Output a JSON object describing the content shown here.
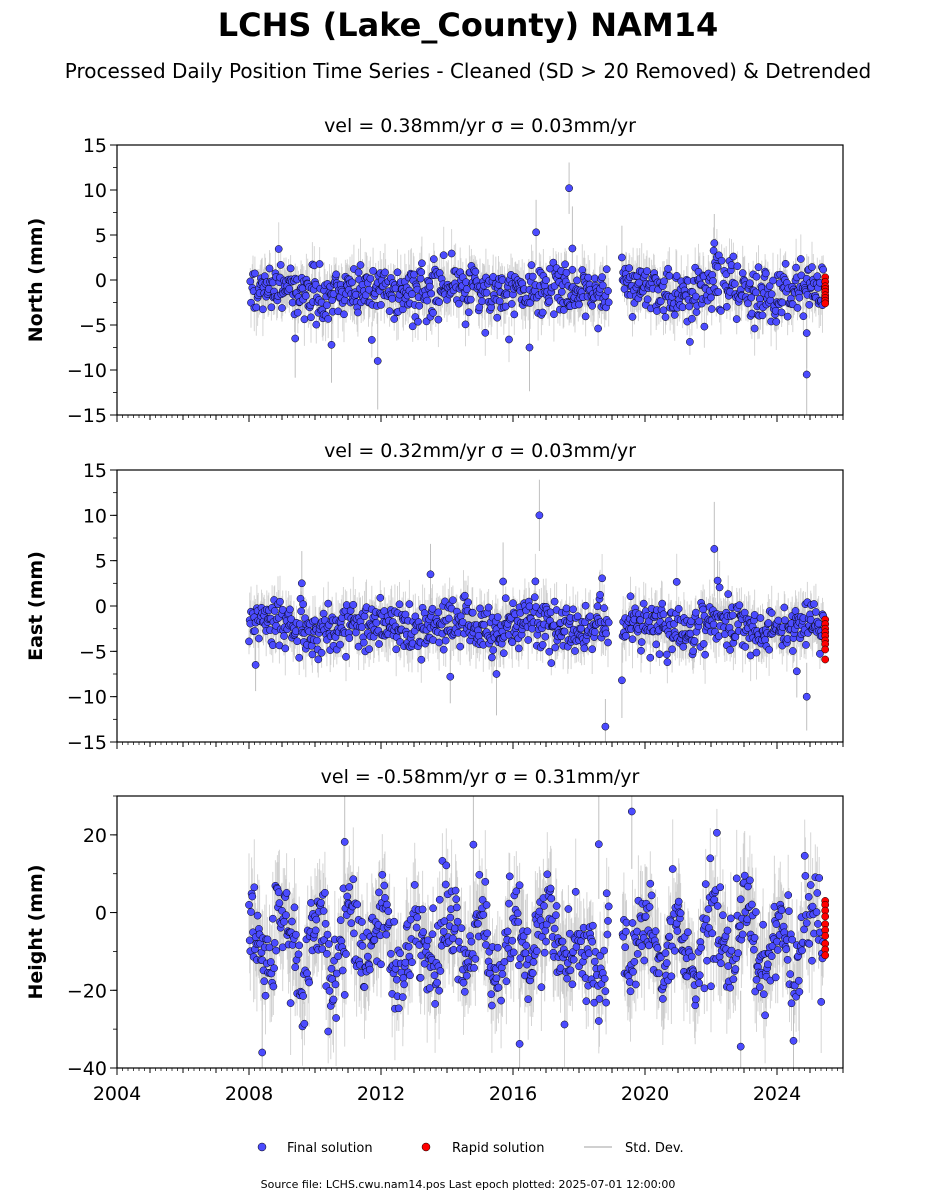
{
  "chart_data": {
    "type": "scatter",
    "title": "LCHS (Lake_County) NAM14",
    "subtitle": "Processed Daily Position Time Series - Cleaned (SD > 20 Removed) & Detrended",
    "x_range": [
      2004,
      2026
    ],
    "x_ticks": [
      "2004",
      "2008",
      "2012",
      "2016",
      "2020",
      "2024"
    ],
    "data_span": [
      2008.0,
      2025.4
    ],
    "panels": [
      {
        "title": "vel = 0.38mm/yr   σ = 0.03mm/yr",
        "ylabel": "North (mm)",
        "ylim": [
          -15,
          15
        ],
        "yticks": [
          "15",
          "10",
          "5",
          "0",
          "−5",
          "−10",
          "−15"
        ],
        "center": -1.2,
        "scatter": 1.4,
        "rapid_values": [
          0.3,
          -0.2,
          -0.7,
          -1.0,
          -1.3,
          -1.7,
          -2.0,
          -2.3,
          -2.6
        ],
        "outliers": [
          [
            2017.7,
            10.2
          ],
          [
            2016.7,
            5.3
          ],
          [
            2022.1,
            4.1
          ],
          [
            2017.8,
            3.5
          ],
          [
            2011.9,
            -9.0
          ],
          [
            2016.5,
            -7.5
          ],
          [
            2010.5,
            -7.2
          ],
          [
            2009.4,
            -6.5
          ],
          [
            2024.9,
            -10.5
          ],
          [
            2024.9,
            -5.9
          ],
          [
            2019.3,
            2.5
          ]
        ],
        "gaps": [
          [
            2018.9,
            2019.3
          ]
        ]
      },
      {
        "title": "vel = 0.32mm/yr   σ = 0.03mm/yr",
        "ylabel": "East (mm)",
        "ylim": [
          -15,
          15
        ],
        "yticks": [
          "15",
          "10",
          "5",
          "0",
          "−5",
          "−10",
          "−15"
        ],
        "center": -2.2,
        "scatter": 1.4,
        "rapid_values": [
          -1.5,
          -2.0,
          -2.5,
          -2.9,
          -3.3,
          -3.8,
          -4.2,
          -4.8,
          -5.9
        ],
        "outliers": [
          [
            2016.8,
            10.0
          ],
          [
            2022.1,
            6.3
          ],
          [
            2013.5,
            3.5
          ],
          [
            2022.2,
            2.8
          ],
          [
            2015.7,
            2.7
          ],
          [
            2009.6,
            2.5
          ],
          [
            2018.8,
            -13.3
          ],
          [
            2019.3,
            -8.2
          ],
          [
            2014.1,
            -7.8
          ],
          [
            2015.5,
            -7.5
          ],
          [
            2024.9,
            -10.0
          ],
          [
            2024.6,
            -7.2
          ],
          [
            2008.2,
            -6.5
          ]
        ],
        "gaps": [
          [
            2018.9,
            2019.3
          ]
        ]
      },
      {
        "title": "vel = -0.58mm/yr   σ = 0.31mm/yr",
        "ylabel": "Height (mm)",
        "ylim": [
          -40,
          30
        ],
        "yticks": [
          "20",
          "0",
          "−20",
          "−40"
        ],
        "center": -8,
        "scatter": 6,
        "seasonal_amplitude": 7,
        "rapid_values": [
          3.0,
          2.0,
          0.5,
          -1.0,
          -3.0,
          -4.5,
          -6.0,
          -8.0,
          -9.5,
          -11.0
        ],
        "outliers": [
          [
            2019.6,
            26.0
          ],
          [
            2010.9,
            18.2
          ],
          [
            2008.4,
            -36.0
          ],
          [
            2022.9,
            -34.5
          ],
          [
            2024.5,
            -33.0
          ],
          [
            2016.2,
            -33.8
          ],
          [
            2018.6,
            17.6
          ],
          [
            2014.8,
            17.5
          ]
        ],
        "gaps": [
          [
            2018.9,
            2019.3
          ]
        ]
      }
    ],
    "legend": [
      "Final solution",
      "Rapid solution",
      "Std. Dev."
    ],
    "legend_position": "bottom-center",
    "colors": {
      "final": "#4b4bff",
      "rapid": "#ff0000",
      "stddev": "#c0c0c0",
      "edge": "#000000"
    }
  },
  "footer": {
    "source": "Source file: LCHS.cwu.nam14.pos  Last epoch plotted: 2025-07-01 12:00:00"
  }
}
